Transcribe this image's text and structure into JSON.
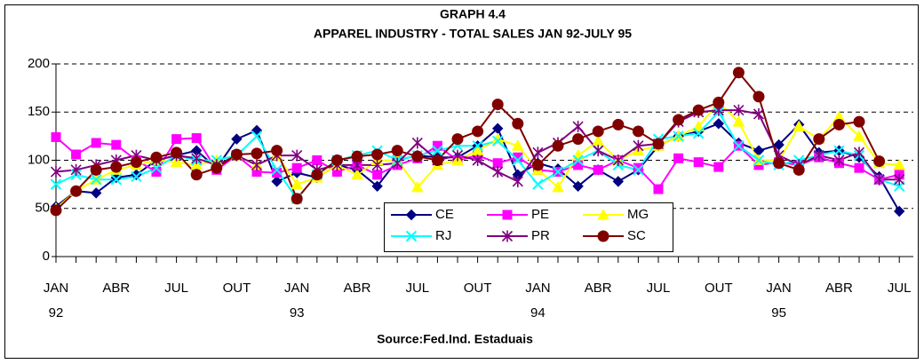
{
  "chart_data": {
    "type": "line",
    "title": "GRAPH 4.4",
    "subtitle": "APPAREL INDUSTRY - TOTAL SALES  JAN 92-JULY 95",
    "source": "Source:Fed.Ind. Estaduais",
    "categories": [
      "JAN",
      null,
      null,
      "ABR",
      null,
      null,
      "JUL",
      null,
      null,
      "OUT",
      null,
      null,
      "JAN",
      null,
      null,
      "ABR",
      null,
      null,
      "JUL",
      null,
      null,
      "OUT",
      null,
      null,
      "JAN",
      null,
      null,
      "ABR",
      null,
      null,
      "JUL",
      null,
      null,
      "OUT",
      null,
      null,
      "JAN",
      null,
      null,
      "ABR",
      null,
      null,
      "JUL"
    ],
    "year_labels": [
      "92",
      "93",
      "94",
      "95"
    ],
    "ylim": [
      0,
      200
    ],
    "yticks": [
      0,
      50,
      100,
      150,
      200
    ],
    "grid": true,
    "series": [
      {
        "name": "CE",
        "color": "#000080",
        "marker": "diamond",
        "values": [
          52,
          68,
          66,
          82,
          85,
          100,
          105,
          110,
          92,
          122,
          131,
          78,
          87,
          82,
          95,
          90,
          73,
          100,
          105,
          103,
          103,
          115,
          133,
          85,
          97,
          91,
          73,
          90,
          78,
          90,
          115,
          125,
          130,
          138,
          118,
          110,
          116,
          137,
          108,
          110,
          103,
          83,
          47
        ]
      },
      {
        "name": "PE",
        "color": "#ff00ff",
        "marker": "square",
        "values": [
          124,
          106,
          118,
          116,
          100,
          88,
          122,
          123,
          90,
          105,
          88,
          87,
          92,
          100,
          88,
          95,
          85,
          95,
          102,
          115,
          100,
          105,
          97,
          103,
          90,
          88,
          95,
          90,
          100,
          92,
          70,
          102,
          98,
          93,
          115,
          95,
          98,
          95,
          103,
          97,
          92,
          80,
          85
        ]
      },
      {
        "name": "MG",
        "color": "#ffff00",
        "marker": "triangle",
        "values": [
          50,
          68,
          80,
          90,
          95,
          100,
          98,
          95,
          100,
          105,
          95,
          105,
          75,
          82,
          95,
          85,
          100,
          100,
          72,
          95,
          100,
          110,
          122,
          115,
          90,
          72,
          105,
          120,
          100,
          110,
          115,
          125,
          135,
          160,
          140,
          100,
          100,
          135,
          122,
          145,
          125,
          97,
          95
        ]
      },
      {
        "name": "RJ",
        "color": "#00ffff",
        "marker": "x",
        "values": [
          75,
          85,
          80,
          80,
          83,
          92,
          105,
          100,
          100,
          105,
          125,
          90,
          60,
          85,
          100,
          105,
          110,
          100,
          105,
          110,
          115,
          115,
          120,
          100,
          75,
          88,
          100,
          110,
          95,
          90,
          122,
          125,
          128,
          150,
          115,
          100,
          95,
          100,
          105,
          110,
          105,
          80,
          73
        ]
      },
      {
        "name": "PR",
        "color": "#800080",
        "marker": "star",
        "values": [
          88,
          90,
          95,
          100,
          105,
          100,
          105,
          102,
          95,
          105,
          95,
          105,
          105,
          90,
          95,
          95,
          95,
          97,
          118,
          100,
          105,
          100,
          88,
          78,
          108,
          118,
          135,
          110,
          100,
          115,
          117,
          140,
          150,
          152,
          152,
          148,
          105,
          95,
          105,
          100,
          108,
          80,
          80
        ]
      },
      {
        "name": "SC",
        "color": "#800000",
        "marker": "circle",
        "values": [
          48,
          68,
          90,
          93,
          98,
          103,
          108,
          85,
          92,
          106,
          107,
          110,
          60,
          85,
          100,
          104,
          106,
          110,
          104,
          100,
          122,
          130,
          158,
          138,
          95,
          115,
          122,
          130,
          137,
          130,
          117,
          142,
          152,
          160,
          191,
          166,
          97,
          90,
          122,
          137,
          140,
          99,
          null
        ]
      }
    ]
  }
}
